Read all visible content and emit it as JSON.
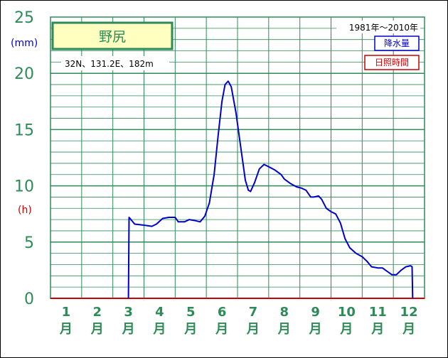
{
  "chart_data": {
    "type": "line",
    "title": "野尻",
    "location": "32N、131.2E、182m",
    "period": "1981年〜2010年",
    "y_unit_precip": "(mm)",
    "y_unit_sun": "(h)",
    "ylim": [
      0,
      25
    ],
    "yticks": [
      "0",
      "5",
      "10",
      "15",
      "20",
      "25"
    ],
    "xlim": [
      0.5,
      12.5
    ],
    "months": [
      {
        "num": "1",
        "unit": "月"
      },
      {
        "num": "2",
        "unit": "月"
      },
      {
        "num": "3",
        "unit": "月"
      },
      {
        "num": "4",
        "unit": "月"
      },
      {
        "num": "5",
        "unit": "月"
      },
      {
        "num": "6",
        "unit": "月"
      },
      {
        "num": "7",
        "unit": "月"
      },
      {
        "num": "8",
        "unit": "月"
      },
      {
        "num": "9",
        "unit": "月"
      },
      {
        "num": "10",
        "unit": "月"
      },
      {
        "num": "11",
        "unit": "月"
      },
      {
        "num": "12",
        "unit": "月"
      }
    ],
    "grid": true,
    "legend_position": "top-right",
    "series": [
      {
        "name": "降水量",
        "color": "#0000cc",
        "points": [
          [
            3.0,
            0
          ],
          [
            3.02,
            7.2
          ],
          [
            3.2,
            6.6
          ],
          [
            3.5,
            6.5
          ],
          [
            3.75,
            6.4
          ],
          [
            3.9,
            6.6
          ],
          [
            4.1,
            7.1
          ],
          [
            4.3,
            7.2
          ],
          [
            4.5,
            7.2
          ],
          [
            4.6,
            6.8
          ],
          [
            4.8,
            6.8
          ],
          [
            4.95,
            7.0
          ],
          [
            5.15,
            6.9
          ],
          [
            5.3,
            6.8
          ],
          [
            5.45,
            7.3
          ],
          [
            5.6,
            8.5
          ],
          [
            5.75,
            11.0
          ],
          [
            5.88,
            14.5
          ],
          [
            6.0,
            17.5
          ],
          [
            6.1,
            19.0
          ],
          [
            6.2,
            19.3
          ],
          [
            6.3,
            18.8
          ],
          [
            6.45,
            16.5
          ],
          [
            6.6,
            13.5
          ],
          [
            6.75,
            10.5
          ],
          [
            6.85,
            9.6
          ],
          [
            6.92,
            9.5
          ],
          [
            7.05,
            10.3
          ],
          [
            7.2,
            11.5
          ],
          [
            7.35,
            11.9
          ],
          [
            7.5,
            11.7
          ],
          [
            7.7,
            11.4
          ],
          [
            7.9,
            11.0
          ],
          [
            8.0,
            10.6
          ],
          [
            8.2,
            10.2
          ],
          [
            8.4,
            9.9
          ],
          [
            8.55,
            9.8
          ],
          [
            8.7,
            9.6
          ],
          [
            8.85,
            9.0
          ],
          [
            8.95,
            9.0
          ],
          [
            9.1,
            9.1
          ],
          [
            9.2,
            8.8
          ],
          [
            9.35,
            8.0
          ],
          [
            9.5,
            7.7
          ],
          [
            9.65,
            7.5
          ],
          [
            9.8,
            6.7
          ],
          [
            9.95,
            5.3
          ],
          [
            10.1,
            4.5
          ],
          [
            10.3,
            4.0
          ],
          [
            10.5,
            3.7
          ],
          [
            10.65,
            3.3
          ],
          [
            10.8,
            2.8
          ],
          [
            11.0,
            2.7
          ],
          [
            11.15,
            2.7
          ],
          [
            11.3,
            2.4
          ],
          [
            11.45,
            2.1
          ],
          [
            11.6,
            2.1
          ],
          [
            11.75,
            2.5
          ],
          [
            11.9,
            2.8
          ],
          [
            12.05,
            2.9
          ],
          [
            12.1,
            2.8
          ],
          [
            12.12,
            0
          ]
        ]
      },
      {
        "name": "日照時間",
        "color": "#cc0000",
        "points": []
      }
    ]
  }
}
